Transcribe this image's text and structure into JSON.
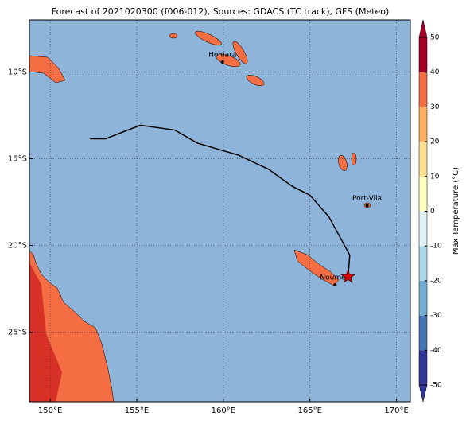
{
  "chart_data": {
    "type": "map",
    "title": "Forecast of 2021020300 (f006-012), Sources: GDACS (TC track), GFS (Meteo)",
    "xlim": [
      148.8,
      170.8
    ],
    "ylim": [
      -29.0,
      -7.0
    ],
    "xticks": [
      {
        "value": 150,
        "label": "150°E"
      },
      {
        "value": 155,
        "label": "155°E"
      },
      {
        "value": 160,
        "label": "160°E"
      },
      {
        "value": 165,
        "label": "165°E"
      },
      {
        "value": 170,
        "label": "170°E"
      }
    ],
    "yticks": [
      {
        "value": -10,
        "label": "10°S"
      },
      {
        "value": -15,
        "label": "15°S"
      },
      {
        "value": -20,
        "label": "20°S"
      },
      {
        "value": -25,
        "label": "25°S"
      }
    ],
    "grid": true,
    "track": {
      "color": "#000000",
      "lon": [
        152.3,
        153.2,
        155.2,
        157.2,
        158.5,
        160.9,
        162.6,
        164.0,
        165.0,
        166.1,
        167.3,
        167.2
      ],
      "lat": [
        -13.85,
        -13.85,
        -13.07,
        -13.35,
        -14.1,
        -14.8,
        -15.6,
        -16.6,
        -17.1,
        -18.35,
        -20.55,
        -21.8
      ]
    },
    "cities": [
      {
        "name": "Honiara",
        "lon": 159.95,
        "lat": -9.43
      },
      {
        "name": "Port-Vila",
        "lon": 168.3,
        "lat": -17.7
      },
      {
        "name": "Nouméa",
        "lon": 166.45,
        "lat": -22.27
      }
    ],
    "colorbar": {
      "label": "Max Temperature (°C)",
      "lim": [
        -50,
        50
      ],
      "ticks": [
        -50,
        -40,
        -30,
        -20,
        -10,
        0,
        10,
        20,
        30,
        40,
        50
      ],
      "colors": [
        "#313695",
        "#4575b4",
        "#74add1",
        "#abd9e9",
        "#e0f3f8",
        "#ffffbf",
        "#fee090",
        "#fdae61",
        "#f46d43",
        "#a50026"
      ]
    }
  }
}
